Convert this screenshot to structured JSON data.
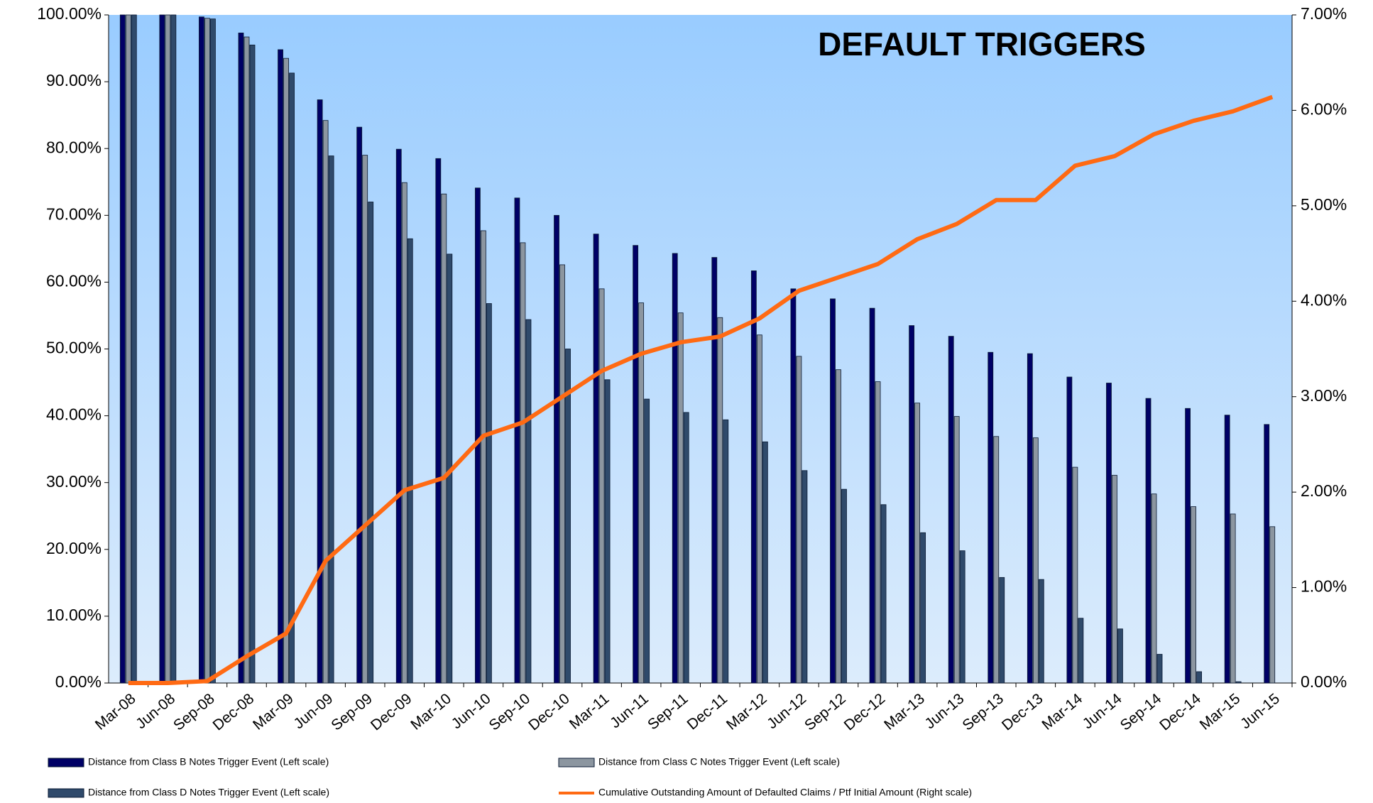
{
  "chart_data": {
    "type": "bar",
    "title": "DEFAULT TRIGGERS",
    "title_color": "#ff6a13",
    "categories": [
      "Mar-08",
      "Jun-08",
      "Sep-08",
      "Dec-08",
      "Mar-09",
      "Jun-09",
      "Sep-09",
      "Dec-09",
      "Mar-10",
      "Jun-10",
      "Sep-10",
      "Dec-10",
      "Mar-11",
      "Jun-11",
      "Sep-11",
      "Dec-11",
      "Mar-12",
      "Jun-12",
      "Sep-12",
      "Dec-12",
      "Mar-13",
      "Jun-13",
      "Sep-13",
      "Dec-13",
      "Mar-14",
      "Jun-14",
      "Sep-14",
      "Dec-14",
      "Mar-15",
      "Jun-15"
    ],
    "series": [
      {
        "name": "Distance from Class B Notes Trigger Event (Left scale)",
        "type": "bar",
        "color": "#000066",
        "values": [
          100,
          100,
          99.7,
          97.3,
          94.8,
          87.3,
          83.2,
          79.9,
          78.5,
          74.1,
          72.6,
          70.0,
          67.2,
          65.5,
          64.3,
          63.7,
          61.7,
          59.0,
          57.5,
          56.1,
          53.5,
          51.9,
          49.5,
          49.3,
          45.8,
          44.9,
          42.6,
          41.1,
          40.1,
          38.7
        ]
      },
      {
        "name": "Distance from Class C Notes Trigger Event (Left scale)",
        "type": "bar",
        "color": "#8c96a0",
        "values": [
          100,
          100,
          99.5,
          96.7,
          93.5,
          84.2,
          79.0,
          74.9,
          73.2,
          67.7,
          65.9,
          62.6,
          59.0,
          56.9,
          55.4,
          54.7,
          52.1,
          48.9,
          46.9,
          45.1,
          41.9,
          39.9,
          36.9,
          36.7,
          32.3,
          31.1,
          28.3,
          26.4,
          25.3,
          23.4
        ]
      },
      {
        "name": "Distance from Class D Notes Trigger Event (Left scale)",
        "type": "bar",
        "color": "#2f4a6b",
        "values": [
          100,
          100,
          99.4,
          95.5,
          91.3,
          78.9,
          72.0,
          66.5,
          64.2,
          56.8,
          54.4,
          50.0,
          45.4,
          42.5,
          40.5,
          39.4,
          36.1,
          31.8,
          29.0,
          26.7,
          22.5,
          19.8,
          15.8,
          15.5,
          9.7,
          8.1,
          4.3,
          1.7,
          0.2,
          0
        ]
      },
      {
        "name": "Cumulative Outstanding Amount of Defaulted Claims / Ptf Initial Amount (Right scale)",
        "type": "line",
        "axis": "y2",
        "color": "#ff6a13",
        "values": [
          0,
          0,
          0.02,
          0.28,
          0.52,
          1.28,
          1.65,
          2.02,
          2.15,
          2.59,
          2.73,
          3.0,
          3.27,
          3.45,
          3.57,
          3.63,
          3.82,
          4.11,
          4.25,
          4.39,
          4.65,
          4.81,
          5.06,
          5.06,
          5.42,
          5.52,
          5.75,
          5.89,
          5.99,
          6.14
        ]
      }
    ],
    "ylim": [
      0,
      100
    ],
    "yticks": [
      {
        "value": 0,
        "label": "0.00%"
      },
      {
        "value": 10,
        "label": "10.00%"
      },
      {
        "value": 20,
        "label": "20.00%"
      },
      {
        "value": 30,
        "label": "30.00%"
      },
      {
        "value": 40,
        "label": "40.00%"
      },
      {
        "value": 50,
        "label": "50.00%"
      },
      {
        "value": 60,
        "label": "60.00%"
      },
      {
        "value": 70,
        "label": "70.00%"
      },
      {
        "value": 80,
        "label": "80.00%"
      },
      {
        "value": 90,
        "label": "90.00%"
      },
      {
        "value": 100,
        "label": "100.00%"
      }
    ],
    "y2lim": [
      0,
      7
    ],
    "y2ticks": [
      {
        "value": 0,
        "label": "0.00%"
      },
      {
        "value": 1,
        "label": "1.00%"
      },
      {
        "value": 2,
        "label": "2.00%"
      },
      {
        "value": 3,
        "label": "3.00%"
      },
      {
        "value": 4,
        "label": "4.00%"
      },
      {
        "value": 5,
        "label": "5.00%"
      },
      {
        "value": 6,
        "label": "6.00%"
      },
      {
        "value": 7,
        "label": "7.00%"
      }
    ],
    "grid": false
  }
}
